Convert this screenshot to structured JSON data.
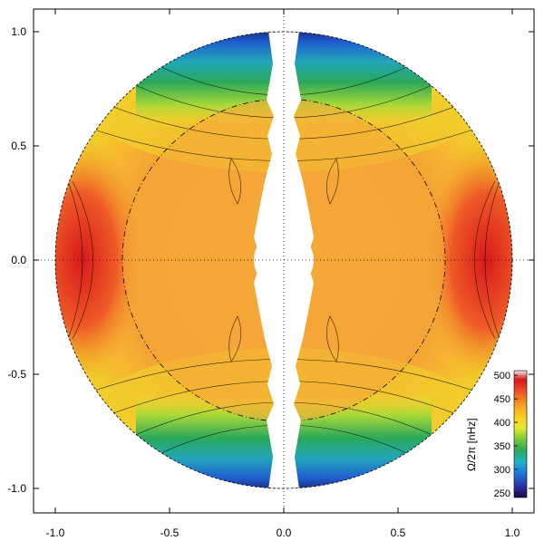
{
  "chart_data": {
    "type": "heatmap",
    "title": "",
    "xlabel": "",
    "ylabel": "",
    "xlim": [
      -1.1,
      1.1
    ],
    "ylim": [
      -1.1,
      1.1
    ],
    "x_ticks": [
      "-1.0",
      "-0.5",
      "0.0",
      "0.5",
      "1.0"
    ],
    "y_ticks": [
      "1.0",
      "0.5",
      "0.0",
      "-0.5",
      "-1.0"
    ],
    "x_tick_values": [
      -1.0,
      -0.5,
      0.0,
      0.5,
      1.0
    ],
    "y_tick_values": [
      1.0,
      0.5,
      0.0,
      -0.5,
      -1.0
    ],
    "grid": false,
    "description_geometry": {
      "outer_radius": 1.0,
      "tachocline_radius": 0.71,
      "inner_core_radius": 0.12
    },
    "colorbar": {
      "label": "Ω/2π [nHz]",
      "ticks": [
        "500",
        "450",
        "400",
        "350",
        "300",
        "250"
      ],
      "tick_values": [
        500,
        450,
        400,
        350,
        300,
        250
      ],
      "range": [
        240,
        510
      ],
      "colors": [
        "#1a0a4a",
        "#2a2a9a",
        "#1f6fd8",
        "#24b0c8",
        "#2aa85a",
        "#7cc83a",
        "#e8e830",
        "#f8d020",
        "#f6a828",
        "#f07a22",
        "#e8402a",
        "#d41818",
        "#e89090",
        "#fbe8e8"
      ]
    },
    "equator_rate_nHz": 460,
    "mid_latitude_rate_nHz": 415,
    "polar_rate_nHz": 280,
    "radiative_interior_rate_nHz": 430
  }
}
